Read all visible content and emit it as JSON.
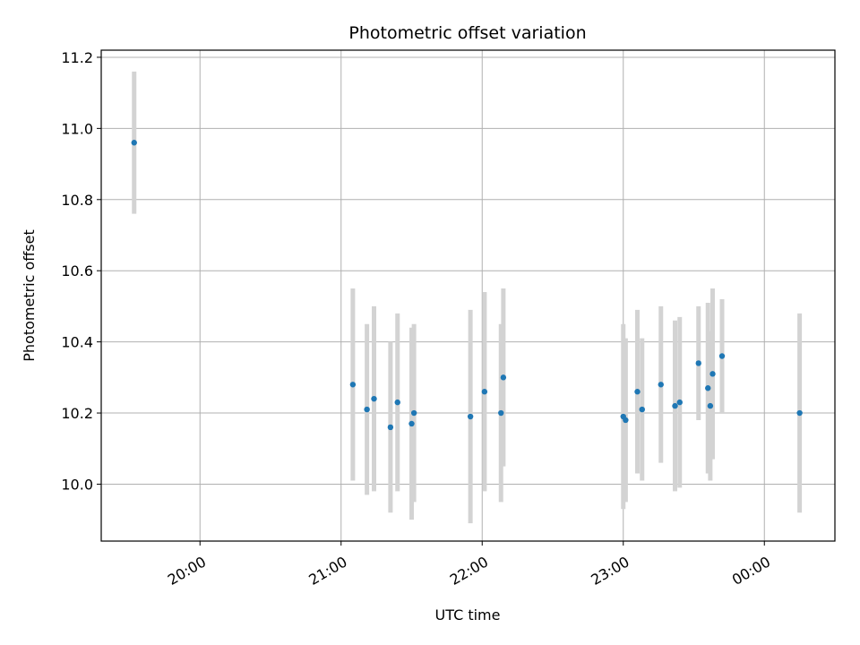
{
  "chart_data": {
    "type": "scatter",
    "title": "Photometric offset variation",
    "xlabel": "UTC time",
    "ylabel": "Photometric offset",
    "x_ticks": [
      "20:00",
      "21:00",
      "22:00",
      "23:00",
      "00:00"
    ],
    "y_ticks": [
      "10.0",
      "10.2",
      "10.4",
      "10.6",
      "10.8",
      "11.0",
      "11.2"
    ],
    "x_range": [
      "19:18",
      "00:30"
    ],
    "y_range": [
      9.84,
      11.22
    ],
    "grid": true,
    "colors": {
      "point": "#1f77b4",
      "errorbar": "#d3d3d3",
      "grid": "#b0b0b0"
    },
    "series": [
      {
        "points": [
          {
            "x": "19:32",
            "y": 10.96,
            "err": 0.2
          },
          {
            "x": "21:05",
            "y": 10.28,
            "err": 0.27
          },
          {
            "x": "21:11",
            "y": 10.21,
            "err": 0.24
          },
          {
            "x": "21:14",
            "y": 10.24,
            "err": 0.26
          },
          {
            "x": "21:21",
            "y": 10.16,
            "err": 0.24
          },
          {
            "x": "21:24",
            "y": 10.23,
            "err": 0.25
          },
          {
            "x": "21:30",
            "y": 10.17,
            "err": 0.27
          },
          {
            "x": "21:31",
            "y": 10.2,
            "err": 0.25
          },
          {
            "x": "21:55",
            "y": 10.19,
            "err": 0.3
          },
          {
            "x": "22:01",
            "y": 10.26,
            "err": 0.28
          },
          {
            "x": "22:08",
            "y": 10.2,
            "err": 0.25
          },
          {
            "x": "22:09",
            "y": 10.3,
            "err": 0.25
          },
          {
            "x": "23:00",
            "y": 10.19,
            "err": 0.26
          },
          {
            "x": "23:01",
            "y": 10.18,
            "err": 0.23
          },
          {
            "x": "23:06",
            "y": 10.26,
            "err": 0.23
          },
          {
            "x": "23:08",
            "y": 10.21,
            "err": 0.2
          },
          {
            "x": "23:16",
            "y": 10.28,
            "err": 0.22
          },
          {
            "x": "23:22",
            "y": 10.22,
            "err": 0.24
          },
          {
            "x": "23:24",
            "y": 10.23,
            "err": 0.24
          },
          {
            "x": "23:32",
            "y": 10.34,
            "err": 0.16
          },
          {
            "x": "23:36",
            "y": 10.27,
            "err": 0.24
          },
          {
            "x": "23:37",
            "y": 10.22,
            "err": 0.21
          },
          {
            "x": "23:38",
            "y": 10.31,
            "err": 0.24
          },
          {
            "x": "23:42",
            "y": 10.36,
            "err": 0.16
          },
          {
            "x": "00:15",
            "y": 10.2,
            "err": 0.28
          }
        ]
      }
    ]
  }
}
